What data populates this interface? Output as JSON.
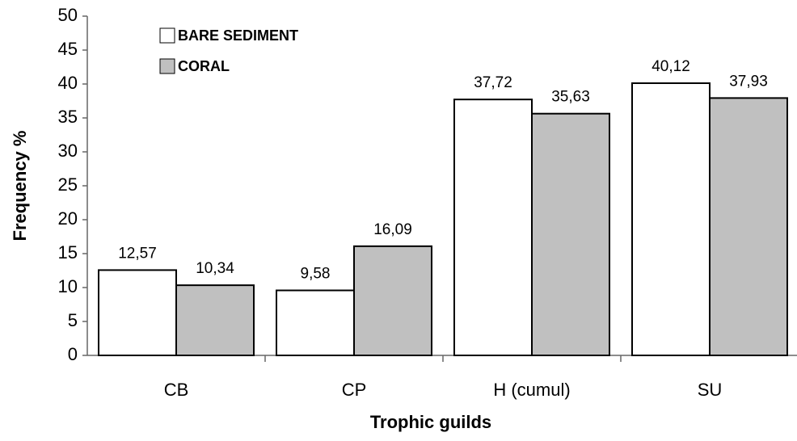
{
  "chart_data": {
    "type": "bar",
    "x_label": "Trophic guilds",
    "y_label": "Frequency %",
    "categories": [
      "CB",
      "CP",
      "H (cumul)",
      "SU"
    ],
    "series": [
      {
        "name": "BARE SEDIMENT",
        "color": "#ffffff",
        "values": [
          12.57,
          9.58,
          37.72,
          40.12
        ],
        "value_labels": [
          "12,57",
          "9,58",
          "37,72",
          "40,12"
        ]
      },
      {
        "name": "CORAL",
        "color": "#c0c0c0",
        "values": [
          10.34,
          16.09,
          35.63,
          37.93
        ],
        "value_labels": [
          "10,34",
          "16,09",
          "35,63",
          "37,93"
        ]
      }
    ],
    "ylim": [
      0,
      50
    ],
    "yticks": [
      0,
      5,
      10,
      15,
      20,
      25,
      30,
      35,
      40,
      45,
      50
    ],
    "grid": false,
    "legend": "top-left"
  }
}
